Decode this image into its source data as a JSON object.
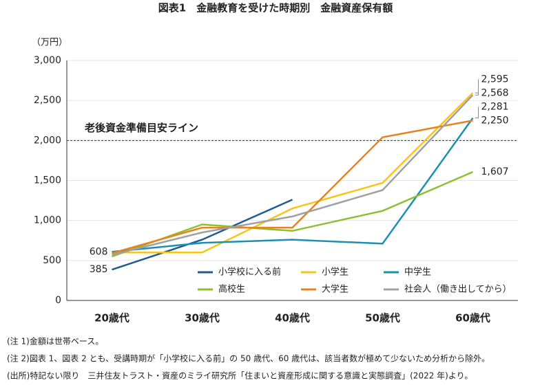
{
  "chart_data": {
    "type": "line",
    "title": "図表1　金融教育を受けた時期別　金融資産保有額",
    "y_unit_label": "（万円）",
    "categories": [
      "20歳代",
      "30歳代",
      "40歳代",
      "50歳代",
      "60歳代"
    ],
    "series": [
      {
        "name": "小学校に入る前",
        "color": "#1f5b8f",
        "values": [
          385,
          760,
          1260,
          null,
          null
        ],
        "value_labels": [
          "385",
          null,
          null,
          null,
          null
        ]
      },
      {
        "name": "小学生",
        "color": "#f5c518",
        "values": [
          600,
          600,
          1150,
          1470,
          2595
        ],
        "value_labels": [
          null,
          null,
          null,
          null,
          "2,595"
        ]
      },
      {
        "name": "中学生",
        "color": "#1a8fb0",
        "values": [
          608,
          720,
          760,
          710,
          2281
        ],
        "value_labels": [
          "608",
          null,
          null,
          null,
          "2,281"
        ]
      },
      {
        "name": "高校生",
        "color": "#8dbf2f",
        "values": [
          550,
          950,
          870,
          1120,
          1607
        ],
        "value_labels": [
          null,
          null,
          null,
          null,
          "1,607"
        ]
      },
      {
        "name": "大学生",
        "color": "#e8821e",
        "values": [
          590,
          910,
          910,
          2040,
          2250
        ],
        "value_labels": [
          null,
          null,
          null,
          null,
          "2,250"
        ]
      },
      {
        "name": "社会人（働き出してから）",
        "color": "#a0a0a0",
        "values": [
          570,
          850,
          1050,
          1380,
          2568
        ],
        "value_labels": [
          null,
          null,
          null,
          null,
          "2,568"
        ]
      }
    ],
    "ylim": [
      0,
      3000
    ],
    "yticks": [
      0,
      500,
      {
        "value": 1000,
        "label": "1,000"
      },
      {
        "value": 1500,
        "label": "1,500"
      },
      {
        "value": 2000,
        "label": "2,000"
      },
      {
        "value": 2500,
        "label": "2,500"
      },
      {
        "value": 3000,
        "label": "3,000"
      }
    ],
    "grid": true,
    "reference_line": {
      "value": 2000,
      "label": "老後資金準備目安ライン"
    }
  },
  "notes": [
    "(注 1)金額は世帯ベース。",
    "(注 2)図表 1、図表 2 とも、受講時期が「小学校に入る前」の 50 歳代、60 歳代は、該当者数が極めて少ないため分析から除外。",
    "(出所)特記ない限り　三井住友トラスト・資産のミライ研究所「住まいと資産形成に関する意識と実態調査」(2022 年)より。"
  ]
}
